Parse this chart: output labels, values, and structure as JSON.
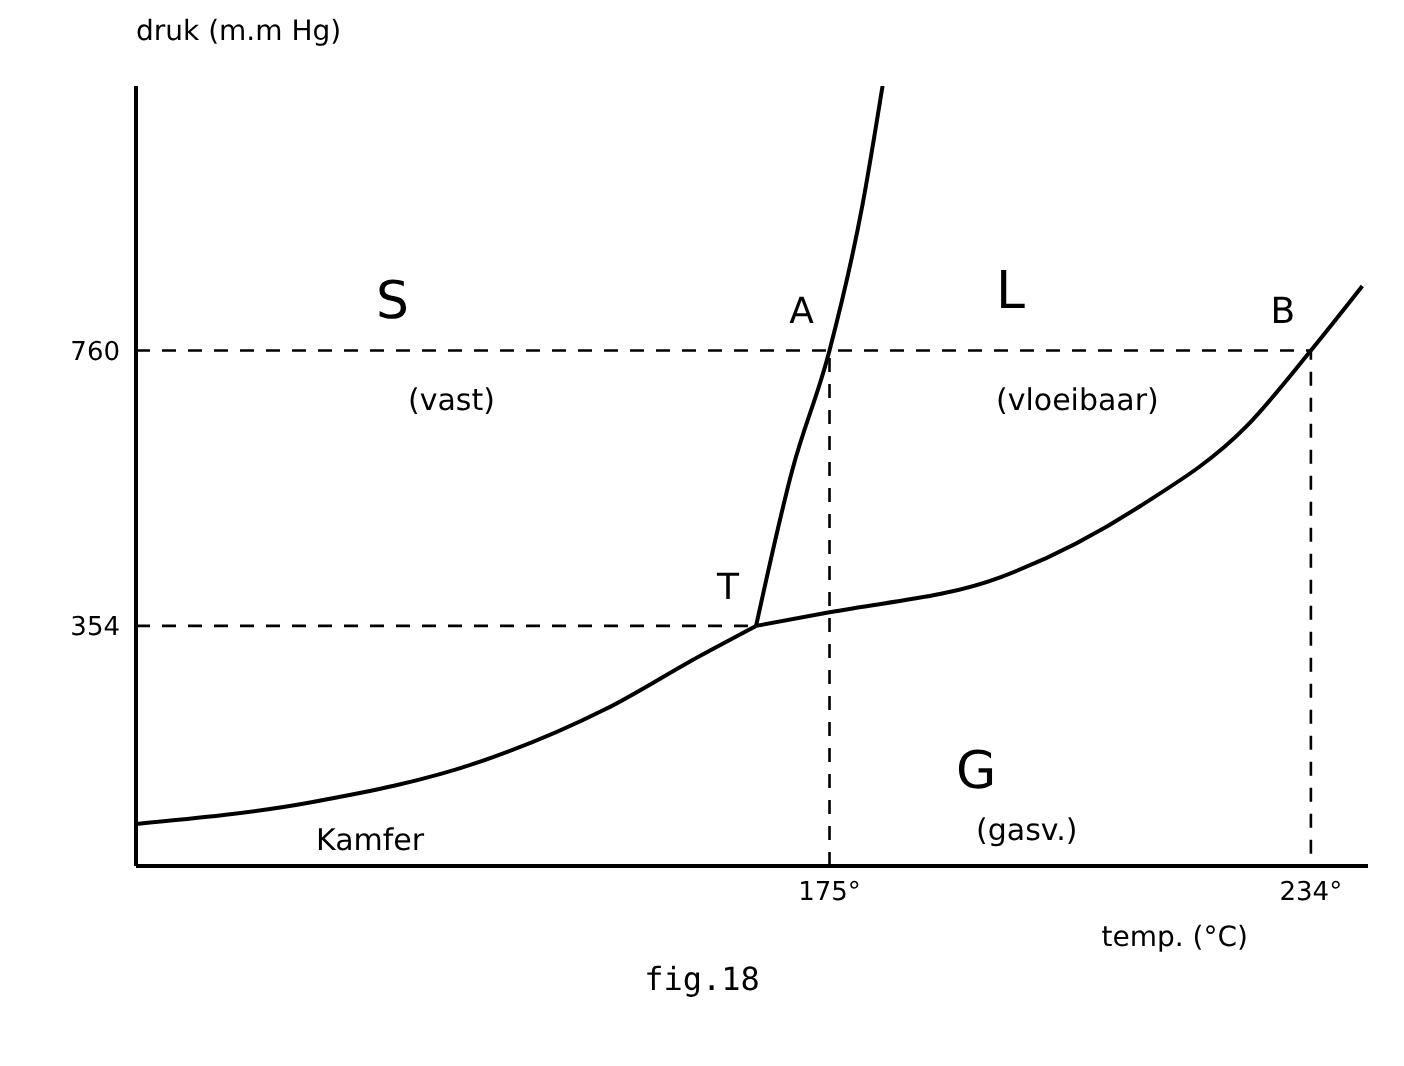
{
  "chart_data": {
    "type": "line",
    "xlabel": "temp. (°C)",
    "ylabel": "druk (m.m Hg)",
    "xlim": [
      90,
      241
    ],
    "ylim": [
      0,
      1150
    ],
    "xticks": [
      {
        "value": 175,
        "label": "175°"
      },
      {
        "value": 234,
        "label": "234°"
      }
    ],
    "yticks": [
      354,
      760
    ],
    "marker": "none",
    "series": [
      {
        "color": "#000000",
        "x": [
          90,
          111.5,
          132,
          147.5,
          159,
          166
        ],
        "values": [
          62,
          94,
          153,
          231,
          309,
          354
        ]
      },
      {
        "color": "#000000",
        "x": [
          166,
          170.4,
          175,
          179,
          181.5
        ],
        "values": [
          354,
          582,
          760,
          972,
          1150
        ]
      },
      {
        "color": "#000000",
        "x": [
          166,
          175,
          196,
          213,
          226,
          234,
          240.3
        ],
        "values": [
          354,
          374,
          426,
          530,
          647,
          760,
          855
        ]
      },
      {
        "color": "#000000",
        "line_style": "dashed",
        "x": [
          90,
          234,
          234
        ],
        "values": [
          760,
          760,
          0
        ]
      },
      {
        "color": "#000000",
        "line_style": "dashed",
        "x": [
          175,
          175
        ],
        "values": [
          0,
          760
        ]
      },
      {
        "color": "#000000",
        "line_style": "dashed",
        "x": [
          90,
          166
        ],
        "values": [
          354,
          354
        ]
      }
    ],
    "annotations": [
      {
        "text": "A",
        "x": 175,
        "y": 760
      },
      {
        "text": "B",
        "x": 234,
        "y": 760
      },
      {
        "text": "T",
        "x": 166,
        "y": 354
      },
      "S",
      "(vast)",
      "L",
      "(vloeibaar)",
      "G",
      "(gasv.)",
      "Kamfer",
      "fig.18"
    ]
  }
}
